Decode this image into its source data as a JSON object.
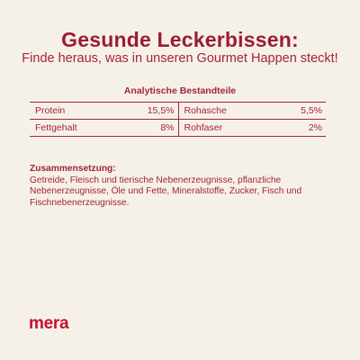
{
  "header": {
    "title": "Gesunde Leckerbissen:",
    "subtitle": "Finde heraus, was in unseren Gourmet Happen steckt!"
  },
  "analysis": {
    "heading": "Analytische Bestandteile",
    "rows": [
      {
        "left_label": "Protein",
        "left_value": "15,5%",
        "right_label": "Rohasche",
        "right_value": "5,5%"
      },
      {
        "left_label": "Fettgehalt",
        "left_value": "8%",
        "right_label": "Rohfaser",
        "right_value": "2%"
      }
    ]
  },
  "composition": {
    "title": "Zusammensetzung:",
    "text": "Getreide, Fleisch und tierische Nebenerzeugnisse, pflanzliche Nebenerzeugnisse, Öle und Fette, Mineralstoffe, Zucker, Fisch und Fischnebenerzeugnisse."
  },
  "brand": {
    "logo_text": "mera",
    "accent_color": "#c8102e",
    "text_color": "#a3243a",
    "background_color": "#f6f1e8"
  }
}
